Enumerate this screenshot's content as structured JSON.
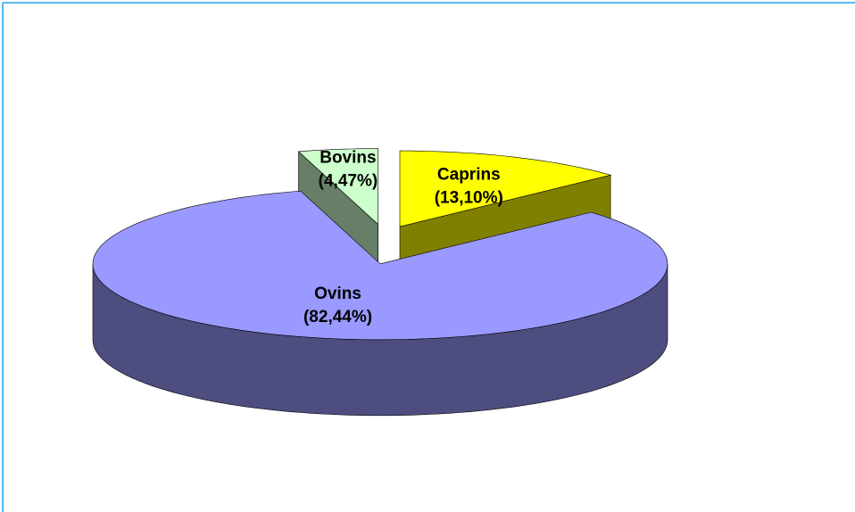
{
  "chart_data": {
    "type": "pie",
    "categories": [
      "Ovins",
      "Bovins",
      "Caprins"
    ],
    "values": [
      82.44,
      4.47,
      13.1
    ],
    "value_labels": [
      "(82,44%)",
      "(4,47%)",
      "(13,10%)"
    ],
    "colors": [
      "#9999ff",
      "#ccffcc",
      "#ffff00"
    ],
    "side_colors": [
      "#4d4d80",
      "#667f66",
      "#808000"
    ]
  }
}
